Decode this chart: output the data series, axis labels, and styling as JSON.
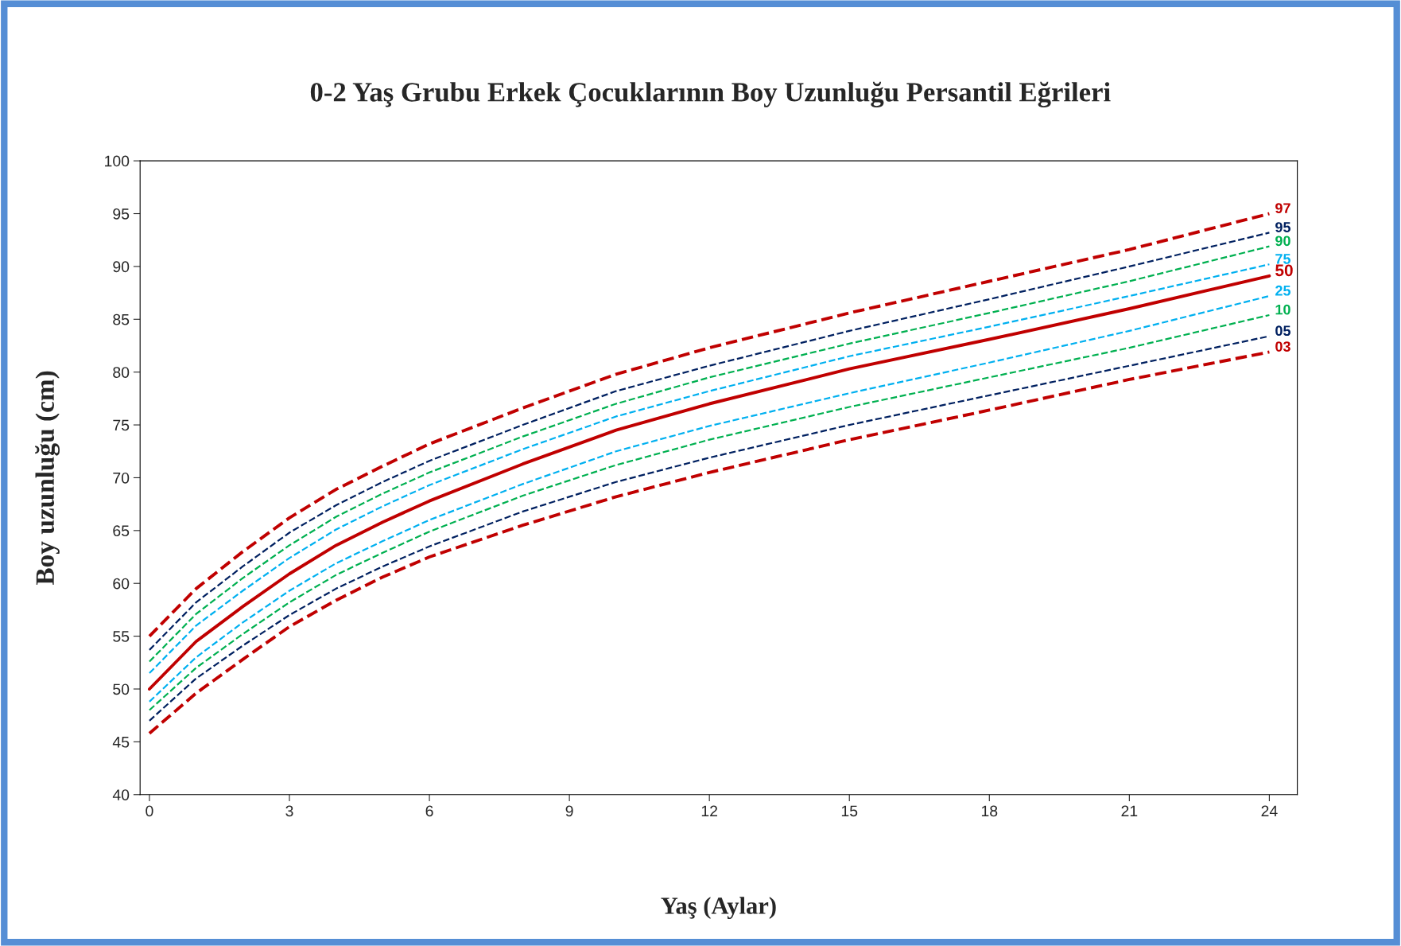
{
  "chart_data": {
    "type": "line",
    "title": "0-2 Yaş Grubu Erkek Çocuklarının Boy Uzunluğu Persantil Eğrileri",
    "xlabel": "Yaş (Aylar)",
    "ylabel": "Boy uzunluğu (cm)",
    "x": [
      0,
      1,
      2,
      3,
      4,
      5,
      6,
      8,
      10,
      12,
      15,
      18,
      21,
      24
    ],
    "xlim": [
      -0.2,
      24.6
    ],
    "xticks": [
      0,
      3,
      6,
      9,
      12,
      15,
      18,
      21,
      24
    ],
    "ylim": [
      40,
      100
    ],
    "yticks": [
      40,
      45,
      50,
      55,
      60,
      65,
      70,
      75,
      80,
      85,
      90,
      95,
      100
    ],
    "grid": false,
    "legend": false,
    "marker": "none",
    "series": [
      {
        "name": "97",
        "color": "#c00000",
        "line_style": "dashed",
        "values": [
          55.0,
          59.5,
          63.0,
          66.2,
          68.9,
          71.1,
          73.2,
          76.6,
          79.8,
          82.3,
          85.6,
          88.6,
          91.6,
          95.0
        ]
      },
      {
        "name": "95",
        "color": "#002060",
        "line_style": "dashed",
        "values": [
          53.7,
          58.2,
          61.6,
          64.8,
          67.4,
          69.6,
          71.6,
          75.0,
          78.2,
          80.6,
          83.9,
          86.9,
          90.0,
          93.2
        ]
      },
      {
        "name": "90",
        "color": "#00b050",
        "line_style": "dashed",
        "values": [
          52.6,
          57.1,
          60.5,
          63.6,
          66.3,
          68.5,
          70.5,
          73.9,
          77.0,
          79.5,
          82.7,
          85.6,
          88.6,
          91.9
        ]
      },
      {
        "name": "75",
        "color": "#00b0f0",
        "line_style": "dashed",
        "values": [
          51.5,
          56.0,
          59.3,
          62.4,
          65.1,
          67.3,
          69.3,
          72.7,
          75.8,
          78.2,
          81.5,
          84.3,
          87.2,
          90.2
        ]
      },
      {
        "name": "50",
        "color": "#c00000",
        "line_style": "solid",
        "values": [
          50.0,
          54.5,
          57.8,
          60.9,
          63.6,
          65.8,
          67.8,
          71.3,
          74.5,
          77.0,
          80.3,
          83.1,
          86.0,
          89.1
        ]
      },
      {
        "name": "25",
        "color": "#00b0f0",
        "line_style": "dashed",
        "values": [
          48.8,
          53.0,
          56.3,
          59.3,
          61.9,
          64.0,
          66.0,
          69.4,
          72.5,
          74.9,
          78.0,
          80.9,
          83.9,
          87.2
        ]
      },
      {
        "name": "10",
        "color": "#00b050",
        "line_style": "dashed",
        "values": [
          48.0,
          52.0,
          55.2,
          58.2,
          60.8,
          62.9,
          64.9,
          68.3,
          71.2,
          73.6,
          76.7,
          79.5,
          82.3,
          85.4
        ]
      },
      {
        "name": "05",
        "color": "#002060",
        "line_style": "dashed",
        "values": [
          47.0,
          51.0,
          54.1,
          57.0,
          59.5,
          61.6,
          63.5,
          66.8,
          69.6,
          71.9,
          75.0,
          77.8,
          80.6,
          83.4
        ]
      },
      {
        "name": "03",
        "color": "#c00000",
        "line_style": "dashed",
        "values": [
          45.8,
          49.6,
          52.8,
          55.9,
          58.4,
          60.6,
          62.5,
          65.5,
          68.2,
          70.5,
          73.6,
          76.4,
          79.3,
          81.9
        ]
      }
    ]
  }
}
